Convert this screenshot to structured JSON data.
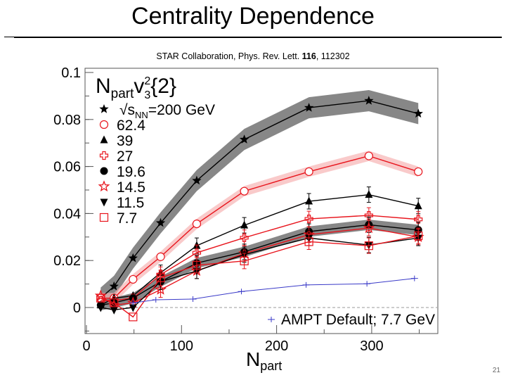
{
  "slide": {
    "title": "Centrality Dependence",
    "citation_pre": "STAR Collaboration, Phys. Rev. Lett. ",
    "citation_bold": "116",
    "citation_post": ", 112302",
    "page_number": "21"
  },
  "chart_data": {
    "type": "line",
    "title": "",
    "ylabel_main": "N",
    "ylabel_sub": "part",
    "ylabel_v": "v",
    "ylabel_sup": "2",
    "ylabel_sub2": "3",
    "ylabel_tail": "{2}",
    "xlabel_main": "N",
    "xlabel_sub": "part",
    "xlim": [
      0,
      370
    ],
    "ylim": [
      -0.01,
      0.1
    ],
    "xticks": [
      "0",
      "100",
      "200",
      "300"
    ],
    "xtick_values": [
      0,
      100,
      200,
      300
    ],
    "yticks": [
      "0",
      "0.02",
      "0.04",
      "0.06",
      "0.08",
      "0.1"
    ],
    "ytick_values": [
      0,
      0.02,
      0.04,
      0.06,
      0.08,
      0.1
    ],
    "zero_line": "dashed",
    "legend_prefix": "√",
    "legend_first_s": "s",
    "legend_first_sub": "NN",
    "legend_first_tail": "=200 GeV",
    "x": [
      15,
      29,
      49,
      78,
      116,
      166,
      234,
      297,
      349
    ],
    "series": [
      {
        "name": "200",
        "color": "#000000",
        "marker": "star",
        "band": "#7a7a7a",
        "values": [
          0.004,
          0.009,
          0.021,
          0.036,
          0.054,
          0.0715,
          0.085,
          0.088,
          0.0825
        ]
      },
      {
        "name": "62.4",
        "color": "#e8141c",
        "marker": "open-circle",
        "band": "#f6b3b3",
        "values": [
          0.004,
          0.004,
          0.012,
          0.0216,
          0.0356,
          0.0495,
          0.0578,
          0.0645,
          0.0578
        ]
      },
      {
        "name": "39",
        "color": "#000000",
        "marker": "triangle-up",
        "values": [
          0.001,
          0.004,
          0.005,
          0.0148,
          0.0263,
          0.035,
          0.0452,
          0.048,
          0.0432
        ]
      },
      {
        "name": "27",
        "color": "#e8141c",
        "marker": "open-cross",
        "values": [
          0.003,
          0.003,
          0.004,
          0.014,
          0.0233,
          0.0297,
          0.0377,
          0.0392,
          0.0375
        ]
      },
      {
        "name": "19.6",
        "color": "#000000",
        "marker": "filled-circle",
        "band": "#7a7a7a",
        "values": [
          0.001,
          0.002,
          0.004,
          0.011,
          0.0189,
          0.0237,
          0.0323,
          0.0352,
          0.033
        ]
      },
      {
        "name": "14.5",
        "color": "#e8141c",
        "marker": "open-star",
        "values": [
          0.005,
          0.001,
          0.002,
          0.0076,
          0.0156,
          0.023,
          0.031,
          0.0338,
          0.03
        ]
      },
      {
        "name": "11.5",
        "color": "#000000",
        "marker": "triangle-down",
        "values": [
          0.0,
          -0.001,
          0.0,
          0.011,
          0.0156,
          0.0225,
          0.0296,
          0.0266,
          0.0296
        ]
      },
      {
        "name": "7.7",
        "color": "#e8141c",
        "marker": "open-square",
        "values": [
          0.004,
          0.002,
          -0.004,
          0.0126,
          0.018,
          0.0198,
          0.028,
          0.0263,
          0.0305
        ]
      }
    ],
    "model": {
      "name": "AMPT Default; 7.7 GeV",
      "color": "#3a3ac8",
      "marker": "cross",
      "x": [
        49,
        73,
        112,
        163,
        231,
        295,
        345
      ],
      "values": [
        0.002,
        0.0033,
        0.0036,
        0.0068,
        0.0096,
        0.0101,
        0.0124
      ]
    }
  }
}
